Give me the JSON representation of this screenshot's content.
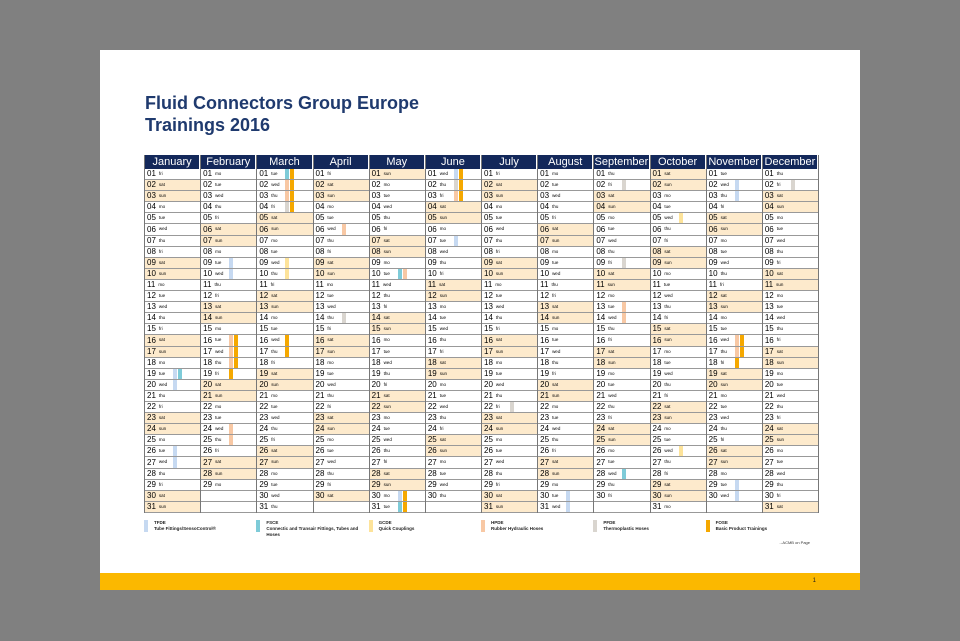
{
  "title": {
    "line1": "Fluid Connectors Group Europe",
    "line2": "Trainings 2016"
  },
  "year": 2016,
  "months": [
    "January",
    "February",
    "March",
    "April",
    "May",
    "June",
    "July",
    "August",
    "September",
    "October",
    "November",
    "December"
  ],
  "weekdays": [
    "sun",
    "mo",
    "tue",
    "wed",
    "thu",
    "fri",
    "sat"
  ],
  "legend": [
    {
      "code": "TFDE",
      "label": "Tube Fittings/SensoControl®",
      "color": "#c6d9f1"
    },
    {
      "code": "FSCE",
      "label": "Connectic and Transair Fittings, Tubes and Hoses",
      "color": "#7ecbd8"
    },
    {
      "code": "GCDE",
      "label": "Quick Couplings",
      "color": "#fde39a"
    },
    {
      "code": "HPDE",
      "label": "Rubber Hydraulic Hoses",
      "color": "#f8c8a4"
    },
    {
      "code": "PFDE",
      "label": "Thermoplastic Hoses",
      "color": "#d9d5cf"
    },
    {
      "code": "FOSE",
      "label": "Basic Product Trainings",
      "color": "#f5a800"
    }
  ],
  "events": [
    {
      "m": 0,
      "d": 19,
      "c": [
        0,
        1
      ]
    },
    {
      "m": 0,
      "d": 20,
      "c": [
        0
      ]
    },
    {
      "m": 0,
      "d": 26,
      "c": [
        0
      ]
    },
    {
      "m": 0,
      "d": 27,
      "c": [
        0
      ]
    },
    {
      "m": 1,
      "d": 9,
      "c": [
        0
      ]
    },
    {
      "m": 1,
      "d": 10,
      "c": [
        0
      ]
    },
    {
      "m": 1,
      "d": 16,
      "c": [
        3,
        5
      ]
    },
    {
      "m": 1,
      "d": 17,
      "c": [
        3,
        5
      ]
    },
    {
      "m": 1,
      "d": 18,
      "c": [
        3,
        5
      ]
    },
    {
      "m": 1,
      "d": 19,
      "c": [
        5
      ]
    },
    {
      "m": 1,
      "d": 24,
      "c": [
        3
      ]
    },
    {
      "m": 1,
      "d": 25,
      "c": [
        3
      ]
    },
    {
      "m": 2,
      "d": 1,
      "c": [
        1,
        5
      ]
    },
    {
      "m": 2,
      "d": 2,
      "c": [
        3,
        5
      ]
    },
    {
      "m": 2,
      "d": 3,
      "c": [
        3,
        5
      ]
    },
    {
      "m": 2,
      "d": 4,
      "c": [
        4,
        5
      ]
    },
    {
      "m": 2,
      "d": 9,
      "c": [
        2
      ]
    },
    {
      "m": 2,
      "d": 10,
      "c": [
        2
      ]
    },
    {
      "m": 2,
      "d": 16,
      "c": [
        5
      ]
    },
    {
      "m": 2,
      "d": 17,
      "c": [
        5
      ]
    },
    {
      "m": 3,
      "d": 6,
      "c": [
        3
      ]
    },
    {
      "m": 3,
      "d": 14,
      "c": [
        4
      ]
    },
    {
      "m": 4,
      "d": 10,
      "c": [
        1,
        3
      ]
    },
    {
      "m": 4,
      "d": 30,
      "c": [
        0,
        5
      ]
    },
    {
      "m": 4,
      "d": 31,
      "c": [
        1,
        5
      ]
    },
    {
      "m": 5,
      "d": 1,
      "c": [
        0,
        5
      ]
    },
    {
      "m": 5,
      "d": 2,
      "c": [
        4,
        5
      ]
    },
    {
      "m": 5,
      "d": 3,
      "c": [
        3,
        5
      ]
    },
    {
      "m": 5,
      "d": 7,
      "c": [
        0
      ]
    },
    {
      "m": 6,
      "d": 22,
      "c": [
        4
      ]
    },
    {
      "m": 7,
      "d": 30,
      "c": [
        0
      ]
    },
    {
      "m": 7,
      "d": 31,
      "c": [
        0
      ]
    },
    {
      "m": 8,
      "d": 2,
      "c": [
        4
      ]
    },
    {
      "m": 8,
      "d": 9,
      "c": [
        4
      ]
    },
    {
      "m": 8,
      "d": 13,
      "c": [
        3
      ]
    },
    {
      "m": 8,
      "d": 14,
      "c": [
        3
      ]
    },
    {
      "m": 8,
      "d": 28,
      "c": [
        1
      ]
    },
    {
      "m": 9,
      "d": 5,
      "c": [
        2
      ]
    },
    {
      "m": 9,
      "d": 26,
      "c": [
        2
      ]
    },
    {
      "m": 10,
      "d": 2,
      "c": [
        0
      ]
    },
    {
      "m": 10,
      "d": 3,
      "c": [
        0
      ]
    },
    {
      "m": 10,
      "d": 16,
      "c": [
        3,
        5
      ]
    },
    {
      "m": 10,
      "d": 17,
      "c": [
        3,
        5
      ]
    },
    {
      "m": 10,
      "d": 18,
      "c": [
        5
      ]
    },
    {
      "m": 10,
      "d": 29,
      "c": [
        0
      ]
    },
    {
      "m": 10,
      "d": 30,
      "c": [
        0
      ]
    },
    {
      "m": 11,
      "d": 2,
      "c": [
        4
      ]
    }
  ],
  "note": "→ACMB on Page",
  "page_number": "1"
}
